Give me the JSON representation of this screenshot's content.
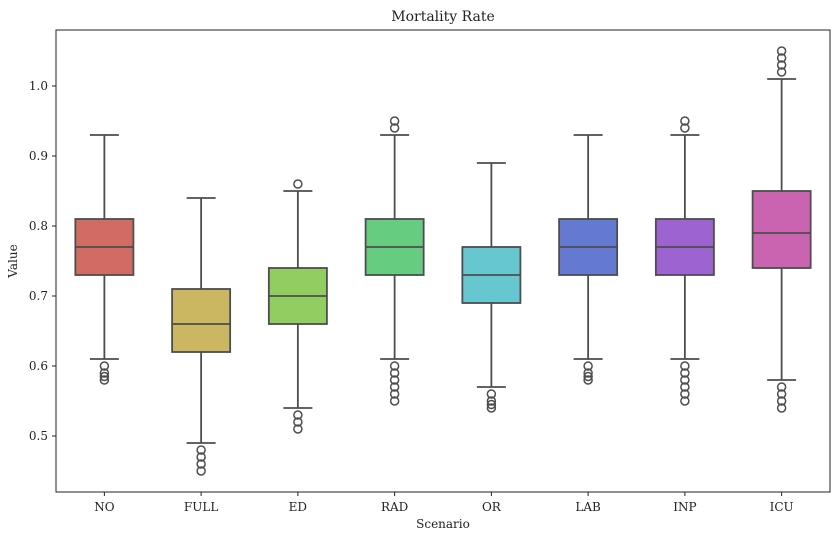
{
  "chart_data": {
    "type": "box",
    "title": "Mortality Rate",
    "xlabel": "Scenario",
    "ylabel": "Value",
    "ylim": [
      0.42,
      1.08
    ],
    "yticks": [
      0.5,
      0.6,
      0.7,
      0.8,
      0.9,
      1.0
    ],
    "ytick_labels": [
      "0.5",
      "0.6",
      "0.7",
      "0.8",
      "0.9",
      "1.0"
    ],
    "grid": false,
    "categories": [
      "NO",
      "FULL",
      "ED",
      "RAD",
      "OR",
      "LAB",
      "INP",
      "ICU"
    ],
    "boxes": [
      {
        "category": "NO",
        "color": "#d16b63",
        "whisker_low": 0.61,
        "q1": 0.73,
        "median": 0.77,
        "q3": 0.81,
        "whisker_high": 0.93,
        "outliers": [
          0.58,
          0.585,
          0.59,
          0.6
        ]
      },
      {
        "category": "FULL",
        "color": "#cbb762",
        "whisker_low": 0.49,
        "q1": 0.62,
        "median": 0.66,
        "q3": 0.71,
        "whisker_high": 0.84,
        "outliers": [
          0.45,
          0.46,
          0.47,
          0.48
        ]
      },
      {
        "category": "ED",
        "color": "#91cd60",
        "whisker_low": 0.54,
        "q1": 0.66,
        "median": 0.7,
        "q3": 0.74,
        "whisker_high": 0.85,
        "outliers": [
          0.51,
          0.52,
          0.53,
          0.86
        ]
      },
      {
        "category": "RAD",
        "color": "#66cd80",
        "whisker_low": 0.61,
        "q1": 0.73,
        "median": 0.77,
        "q3": 0.81,
        "whisker_high": 0.93,
        "outliers": [
          0.55,
          0.56,
          0.57,
          0.58,
          0.59,
          0.6,
          0.94,
          0.95
        ]
      },
      {
        "category": "OR",
        "color": "#67c7d0",
        "whisker_low": 0.57,
        "q1": 0.69,
        "median": 0.73,
        "q3": 0.77,
        "whisker_high": 0.89,
        "outliers": [
          0.54,
          0.545,
          0.55,
          0.56
        ]
      },
      {
        "category": "LAB",
        "color": "#6479d1",
        "whisker_low": 0.61,
        "q1": 0.73,
        "median": 0.77,
        "q3": 0.81,
        "whisker_high": 0.93,
        "outliers": [
          0.58,
          0.585,
          0.59,
          0.6
        ]
      },
      {
        "category": "INP",
        "color": "#9d63d1",
        "whisker_low": 0.61,
        "q1": 0.73,
        "median": 0.77,
        "q3": 0.81,
        "whisker_high": 0.93,
        "outliers": [
          0.55,
          0.56,
          0.57,
          0.58,
          0.59,
          0.6,
          0.94,
          0.95
        ]
      },
      {
        "category": "ICU",
        "color": "#cb64b0",
        "whisker_low": 0.58,
        "q1": 0.74,
        "median": 0.79,
        "q3": 0.85,
        "whisker_high": 1.01,
        "outliers": [
          0.54,
          0.55,
          0.56,
          0.57,
          1.02,
          1.03,
          1.04,
          1.05
        ]
      }
    ]
  }
}
